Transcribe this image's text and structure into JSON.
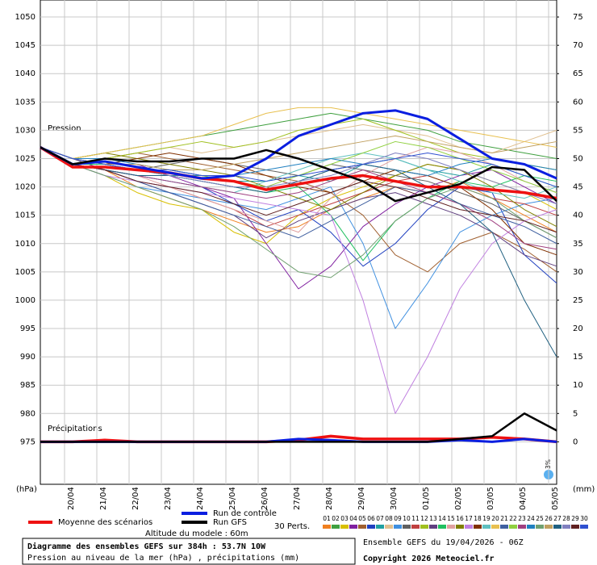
{
  "chart_data": {
    "type": "line",
    "pressure_label": "Pression",
    "precip_label": "Précipitations",
    "y_unit": "(hPa)",
    "y2_unit": "(mm)",
    "perturbations_label": "30 Perts.",
    "altitude": "Altitude du modele : 60m",
    "title": "Diagramme des ensembles GEFS sur 384h : 53.7N 10W",
    "subtitle": "Pression au niveau de la mer (hPa) , précipitations (mm)",
    "run_info": "Ensemble GEFS du 19/04/2026 - 06Z",
    "copyright": "Copyright 2026 Meteociel.fr",
    "snow_label": "3%",
    "grid": true,
    "xlim": [
      0,
      384
    ],
    "xticks": [
      {
        "value": 18,
        "label": "20/04"
      },
      {
        "value": 42,
        "label": "21/04"
      },
      {
        "value": 66,
        "label": "22/04"
      },
      {
        "value": 90,
        "label": "23/04"
      },
      {
        "value": 114,
        "label": "24/04"
      },
      {
        "value": 138,
        "label": "25/04"
      },
      {
        "value": 162,
        "label": "26/04"
      },
      {
        "value": 186,
        "label": "27/04"
      },
      {
        "value": 210,
        "label": "28/04"
      },
      {
        "value": 234,
        "label": "29/04"
      },
      {
        "value": 258,
        "label": "30/04"
      },
      {
        "value": 282,
        "label": "01/05"
      },
      {
        "value": 306,
        "label": "02/05"
      },
      {
        "value": 330,
        "label": "03/05"
      },
      {
        "value": 354,
        "label": "04/05"
      },
      {
        "value": 378,
        "label": "05/05"
      }
    ],
    "ylim": [
      967.5,
      1053
    ],
    "yticks": [
      975,
      980,
      985,
      990,
      995,
      1000,
      1005,
      1010,
      1015,
      1020,
      1025,
      1030,
      1035,
      1040,
      1045,
      1050
    ],
    "y2lim": [
      -7.5,
      78
    ],
    "y2ticks": [
      0,
      5,
      10,
      15,
      20,
      25,
      30,
      35,
      40,
      45,
      50,
      55,
      60,
      65,
      70,
      75
    ],
    "x": [
      0,
      24,
      48,
      72,
      96,
      120,
      144,
      168,
      192,
      216,
      240,
      264,
      288,
      312,
      336,
      360,
      384
    ],
    "series": [
      {
        "name": "01",
        "color": "#f08020",
        "line_width": 1,
        "values": [
          1027,
          1024,
          1023,
          1020,
          1018,
          1016,
          1014,
          1012,
          1013,
          1016,
          1018,
          1020,
          1019,
          1021,
          1018,
          1015,
          1012
        ]
      },
      {
        "name": "02",
        "color": "#40a040",
        "line_width": 1,
        "values": [
          1027,
          1025,
          1026,
          1027,
          1028,
          1029,
          1030,
          1031,
          1032,
          1033,
          1032,
          1031,
          1030,
          1028,
          1027,
          1026,
          1025
        ]
      },
      {
        "name": "03",
        "color": "#d8c000",
        "line_width": 1,
        "values": [
          1027,
          1024,
          1022,
          1019,
          1017,
          1016,
          1012,
          1010,
          1015,
          1018,
          1020,
          1022,
          1024,
          1023,
          1021,
          1019,
          1016
        ]
      },
      {
        "name": "04",
        "color": "#8020a0",
        "line_width": 1,
        "values": [
          1027,
          1025,
          1024,
          1024,
          1022,
          1020,
          1018,
          1010,
          1002,
          1006,
          1013,
          1017,
          1020,
          1022,
          1023,
          1020,
          1017
        ]
      },
      {
        "name": "05",
        "color": "#a06030",
        "line_width": 1,
        "values": [
          1027,
          1024,
          1025,
          1026,
          1025,
          1024,
          1023,
          1022,
          1021,
          1019,
          1015,
          1008,
          1005,
          1010,
          1012,
          1009,
          1005
        ]
      },
      {
        "name": "06",
        "color": "#2040c0",
        "line_width": 1,
        "values": [
          1027,
          1024,
          1023,
          1022,
          1021,
          1020,
          1017,
          1014,
          1016,
          1012,
          1006,
          1010,
          1016,
          1020,
          1019,
          1008,
          1003
        ]
      },
      {
        "name": "07",
        "color": "#20a0a0",
        "line_width": 1,
        "values": [
          1027,
          1025,
          1024,
          1023,
          1022,
          1022,
          1021,
          1021,
          1022,
          1021,
          1024,
          1025,
          1023,
          1022,
          1024,
          1022,
          1020
        ]
      },
      {
        "name": "08",
        "color": "#e0c090",
        "line_width": 1,
        "values": [
          1027,
          1024,
          1025,
          1026,
          1027,
          1026,
          1027,
          1028,
          1029,
          1030,
          1031,
          1030,
          1029,
          1027,
          1026,
          1028,
          1030
        ]
      },
      {
        "name": "09",
        "color": "#4090e0",
        "line_width": 1,
        "values": [
          1027,
          1024,
          1022,
          1020,
          1019,
          1018,
          1017,
          1016,
          1018,
          1020,
          1010,
          995,
          1003,
          1012,
          1015,
          1017,
          1018
        ]
      },
      {
        "name": "10",
        "color": "#606060",
        "line_width": 1,
        "values": [
          1027,
          1025,
          1024,
          1023,
          1024,
          1025,
          1024,
          1023,
          1022,
          1024,
          1023,
          1022,
          1021,
          1019,
          1017,
          1014,
          1011
        ]
      },
      {
        "name": "11",
        "color": "#c04040",
        "line_width": 1,
        "values": [
          1027,
          1024,
          1023,
          1021,
          1020,
          1018,
          1016,
          1013,
          1015,
          1017,
          1019,
          1021,
          1022,
          1020,
          1018,
          1017,
          1015
        ]
      },
      {
        "name": "12",
        "color": "#a0c020",
        "line_width": 1,
        "values": [
          1027,
          1024,
          1025,
          1026,
          1027,
          1028,
          1027,
          1028,
          1030,
          1031,
          1032,
          1030,
          1028,
          1026,
          1025,
          1024,
          1023
        ]
      },
      {
        "name": "13",
        "color": "#604080",
        "line_width": 1,
        "values": [
          1027,
          1025,
          1023,
          1021,
          1019,
          1017,
          1015,
          1011,
          1014,
          1016,
          1018,
          1019,
          1017,
          1015,
          1012,
          1008,
          1006
        ]
      },
      {
        "name": "14",
        "color": "#20c060",
        "line_width": 1,
        "values": [
          1027,
          1024,
          1024,
          1023,
          1022,
          1021,
          1020,
          1019,
          1020,
          1015,
          1007,
          1014,
          1018,
          1021,
          1020,
          1022,
          1021
        ]
      },
      {
        "name": "15",
        "color": "#e0a0a0",
        "line_width": 1,
        "values": [
          1027,
          1024,
          1023,
          1022,
          1020,
          1018,
          1016,
          1014,
          1012,
          1018,
          1022,
          1025,
          1027,
          1026,
          1024,
          1021,
          1019
        ]
      },
      {
        "name": "16",
        "color": "#808000",
        "line_width": 1,
        "values": [
          1027,
          1025,
          1026,
          1025,
          1024,
          1023,
          1022,
          1020,
          1018,
          1016,
          1019,
          1022,
          1024,
          1023,
          1020,
          1016,
          1013
        ]
      },
      {
        "name": "17",
        "color": "#c080e0",
        "line_width": 1,
        "values": [
          1027,
          1024,
          1022,
          1021,
          1020,
          1019,
          1018,
          1017,
          1016,
          1015,
          1000,
          980,
          990,
          1002,
          1010,
          1014,
          1016
        ]
      },
      {
        "name": "18",
        "color": "#803000",
        "line_width": 1,
        "values": [
          1027,
          1025,
          1024,
          1025,
          1026,
          1025,
          1024,
          1022,
          1020,
          1019,
          1021,
          1023,
          1022,
          1020,
          1016,
          1010,
          1008
        ]
      },
      {
        "name": "19",
        "color": "#60c0c0",
        "line_width": 1,
        "values": [
          1027,
          1024,
          1023,
          1022,
          1021,
          1020,
          1019,
          1021,
          1023,
          1025,
          1026,
          1025,
          1023,
          1021,
          1019,
          1018,
          1020
        ]
      },
      {
        "name": "20",
        "color": "#e8c050",
        "line_width": 1,
        "values": [
          1027,
          1025,
          1026,
          1027,
          1028,
          1029,
          1031,
          1033,
          1034,
          1034,
          1033,
          1032,
          1031,
          1030,
          1029,
          1028,
          1027
        ]
      },
      {
        "name": "21",
        "color": "#4060a0",
        "line_width": 1,
        "values": [
          1027,
          1024,
          1023,
          1021,
          1019,
          1017,
          1015,
          1013,
          1011,
          1014,
          1017,
          1020,
          1019,
          1017,
          1015,
          1013,
          1010
        ]
      },
      {
        "name": "22",
        "color": "#90d040",
        "line_width": 1,
        "values": [
          1027,
          1025,
          1024,
          1023,
          1023,
          1022,
          1021,
          1020,
          1022,
          1024,
          1026,
          1028,
          1027,
          1025,
          1023,
          1021,
          1019
        ]
      },
      {
        "name": "23",
        "color": "#a04080",
        "line_width": 1,
        "values": [
          1027,
          1024,
          1023,
          1022,
          1021,
          1020,
          1019,
          1018,
          1019,
          1021,
          1023,
          1021,
          1019,
          1017,
          1014,
          1010,
          1009
        ]
      },
      {
        "name": "24",
        "color": "#2080c0",
        "line_width": 1,
        "values": [
          1027,
          1025,
          1025,
          1024,
          1023,
          1022,
          1022,
          1023,
          1024,
          1025,
          1024,
          1023,
          1022,
          1024,
          1025,
          1024,
          1023
        ]
      },
      {
        "name": "25",
        "color": "#70a070",
        "line_width": 1,
        "values": [
          1027,
          1024,
          1022,
          1020,
          1018,
          1016,
          1013,
          1009,
          1005,
          1004,
          1008,
          1014,
          1018,
          1020,
          1018,
          1014,
          1011
        ]
      },
      {
        "name": "26",
        "color": "#c0a060",
        "line_width": 1,
        "values": [
          1027,
          1025,
          1024,
          1024,
          1023,
          1023,
          1024,
          1025,
          1026,
          1027,
          1028,
          1029,
          1028,
          1027,
          1026,
          1027,
          1028
        ]
      },
      {
        "name": "27",
        "color": "#206080",
        "line_width": 1,
        "values": [
          1027,
          1024,
          1023,
          1022,
          1022,
          1021,
          1020,
          1019,
          1021,
          1023,
          1024,
          1023,
          1020,
          1017,
          1012,
          1000,
          990
        ]
      },
      {
        "name": "28",
        "color": "#8080c0",
        "line_width": 1,
        "values": [
          1027,
          1025,
          1024,
          1023,
          1022,
          1021,
          1020,
          1020,
          1021,
          1022,
          1024,
          1026,
          1025,
          1023,
          1021,
          1019,
          1017
        ]
      },
      {
        "name": "29",
        "color": "#602020",
        "line_width": 1,
        "values": [
          1027,
          1024,
          1023,
          1021,
          1020,
          1019,
          1017,
          1015,
          1017,
          1019,
          1021,
          1020,
          1018,
          1016,
          1015,
          1014,
          1012
        ]
      },
      {
        "name": "30",
        "color": "#3050d0",
        "line_width": 1,
        "values": [
          1027,
          1025,
          1024,
          1023,
          1023,
          1022,
          1022,
          1021,
          1022,
          1023,
          1024,
          1025,
          1026,
          1025,
          1024,
          1022,
          1020
        ]
      },
      {
        "name": "Moyenne des scénarios",
        "color": "#ee1111",
        "line_width": 3.5,
        "values": [
          1027,
          1023.5,
          1023.5,
          1023,
          1022.5,
          1021.5,
          1021,
          1019.5,
          1020.5,
          1021.5,
          1022,
          1021,
          1020,
          1020,
          1019.5,
          1019,
          1018
        ],
        "precipitation": [
          0,
          0,
          0.3,
          0,
          0,
          0,
          0,
          0,
          0.3,
          1,
          0.5,
          0.5,
          0.5,
          0.5,
          0.8,
          0.5,
          0
        ]
      },
      {
        "name": "Run de contrôle",
        "color": "#0a1ee0",
        "line_width": 3,
        "values": [
          1027,
          1024,
          1024.5,
          1023.5,
          1022.5,
          1021.5,
          1022,
          1025,
          1029,
          1031,
          1033,
          1033.5,
          1032,
          1028.5,
          1025,
          1024,
          1021.5
        ],
        "precipitation": [
          0,
          0,
          0,
          0,
          0,
          0,
          0,
          0,
          0.5,
          0.3,
          0,
          0,
          0,
          0.3,
          0,
          0.5,
          0
        ]
      },
      {
        "name": "Run GFS",
        "color": "#000000",
        "line_width": 2.5,
        "values": [
          1027,
          1024,
          1025,
          1024.5,
          1024.5,
          1025,
          1025,
          1026.5,
          1025,
          1023,
          1021,
          1017.5,
          1019,
          1020.5,
          1023.5,
          1023,
          1017.5
        ],
        "precipitation": [
          0,
          0,
          0,
          0,
          0,
          0,
          0,
          0,
          0,
          0,
          0,
          0,
          0,
          0.5,
          1,
          5,
          2
        ]
      }
    ]
  }
}
